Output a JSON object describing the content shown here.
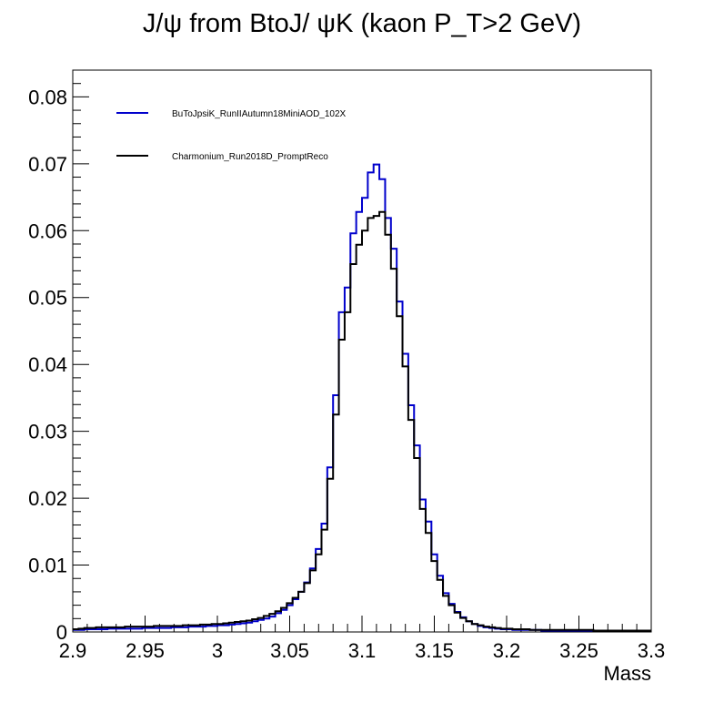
{
  "chart_data": {
    "type": "line",
    "title": "J/ψ from BtoJ/ ψK (kaon P_T>2 GeV)",
    "xlabel": "Mass",
    "ylabel": "",
    "xlim": [
      2.9,
      3.3
    ],
    "ylim": [
      0,
      0.084
    ],
    "x_ticks": [
      "2.9",
      "2.95",
      "3",
      "3.05",
      "3.1",
      "3.15",
      "3.2",
      "3.25",
      "3.3"
    ],
    "y_ticks": [
      "0",
      "0.01",
      "0.02",
      "0.03",
      "0.04",
      "0.05",
      "0.06",
      "0.07",
      "0.08"
    ],
    "grid": false,
    "legend_position": "top-left",
    "bin_edges_start": 2.9,
    "bin_width": 0.004,
    "series": [
      {
        "name": "BuToJpsiK_RunIIAutumn18MiniAOD_102X",
        "color": "#0000cc",
        "style": "step",
        "values": [
          0.0003,
          0.0003,
          0.0004,
          0.0004,
          0.0004,
          0.0004,
          0.0005,
          0.0005,
          0.0005,
          0.0005,
          0.0005,
          0.0005,
          0.0006,
          0.0006,
          0.0006,
          0.0006,
          0.0006,
          0.0007,
          0.0007,
          0.0007,
          0.0008,
          0.0008,
          0.0008,
          0.0009,
          0.0009,
          0.001,
          0.001,
          0.0011,
          0.0012,
          0.0013,
          0.0014,
          0.0016,
          0.0018,
          0.002,
          0.0023,
          0.0028,
          0.0033,
          0.004,
          0.0049,
          0.006,
          0.0074,
          0.0095,
          0.0124,
          0.0162,
          0.0246,
          0.0354,
          0.0478,
          0.0515,
          0.0596,
          0.0628,
          0.0649,
          0.0687,
          0.0699,
          0.0677,
          0.0619,
          0.0573,
          0.0494,
          0.0416,
          0.0339,
          0.0279,
          0.0198,
          0.0165,
          0.0116,
          0.0084,
          0.0058,
          0.0042,
          0.003,
          0.0022,
          0.0016,
          0.0012,
          0.0009,
          0.0007,
          0.0006,
          0.0005,
          0.0004,
          0.0004,
          0.0003,
          0.0003,
          0.0003,
          0.0003,
          0.0003,
          0.0002,
          0.0002,
          0.0002,
          0.0002,
          0.0002,
          0.0002,
          0.0002,
          0.0002,
          0.0002,
          0.0002,
          0.0002,
          0.0002,
          0.0002,
          0.0002,
          0.0002,
          0.0002,
          0.0002,
          0.0002,
          0.0002
        ]
      },
      {
        "name": "Charmonium_Run2018D_PromptReco",
        "color": "#000000",
        "style": "step",
        "values": [
          0.0004,
          0.0005,
          0.0006,
          0.0006,
          0.0007,
          0.0007,
          0.0007,
          0.0007,
          0.0007,
          0.0008,
          0.0008,
          0.0008,
          0.0008,
          0.0008,
          0.0009,
          0.0009,
          0.0009,
          0.0009,
          0.0009,
          0.001,
          0.001,
          0.001,
          0.0011,
          0.0011,
          0.0012,
          0.0012,
          0.0013,
          0.0014,
          0.0015,
          0.0016,
          0.0017,
          0.0019,
          0.0021,
          0.0024,
          0.0027,
          0.0031,
          0.0036,
          0.0043,
          0.0051,
          0.006,
          0.0073,
          0.0092,
          0.0116,
          0.0153,
          0.0229,
          0.0325,
          0.0437,
          0.0478,
          0.055,
          0.0579,
          0.06,
          0.0619,
          0.0622,
          0.0628,
          0.0594,
          0.0543,
          0.0472,
          0.0397,
          0.0317,
          0.026,
          0.0184,
          0.0148,
          0.0106,
          0.0078,
          0.0054,
          0.004,
          0.0029,
          0.0021,
          0.0016,
          0.0012,
          0.001,
          0.0008,
          0.0007,
          0.0006,
          0.0005,
          0.0005,
          0.0004,
          0.0004,
          0.0004,
          0.0003,
          0.0003,
          0.0003,
          0.0003,
          0.0003,
          0.0003,
          0.0003,
          0.0003,
          0.0003,
          0.0003,
          0.0003,
          0.0002,
          0.0002,
          0.0002,
          0.0002,
          0.0002,
          0.0002,
          0.0002,
          0.0002,
          0.0002,
          0.0002
        ]
      }
    ]
  }
}
